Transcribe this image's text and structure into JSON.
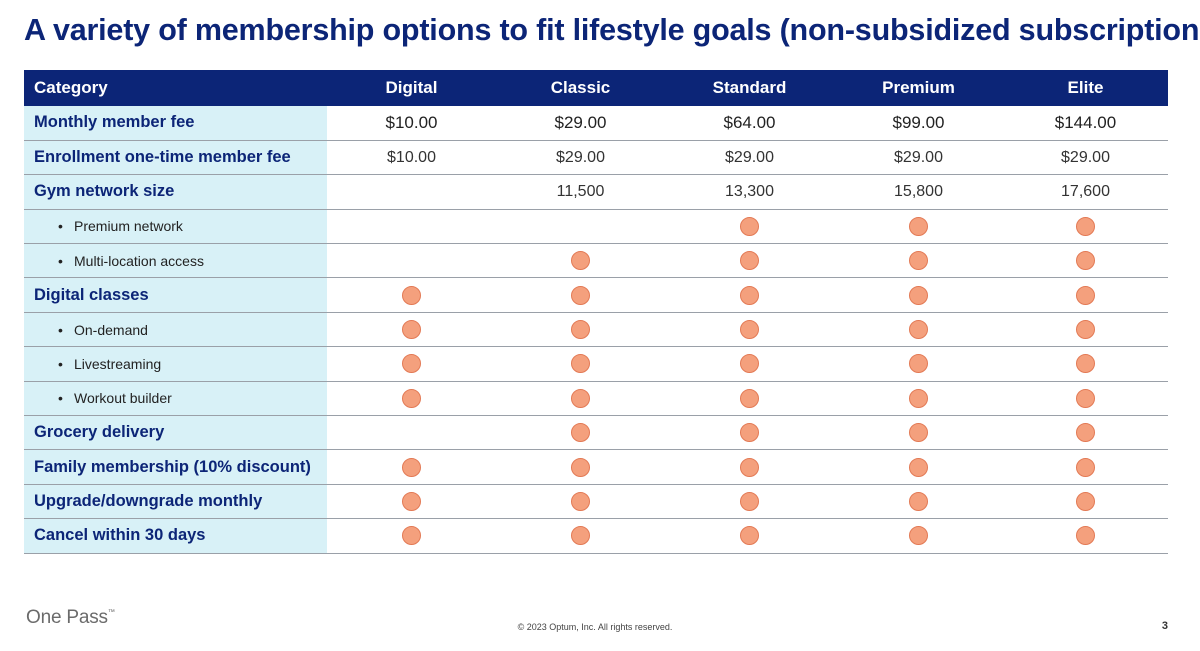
{
  "title": "A variety of membership options to fit lifestyle goals (non-subsidized subscriptions)",
  "colors": {
    "header_bg": "#0c2577",
    "label_bg": "#d8f1f7",
    "dot": "#f4a07d"
  },
  "table": {
    "headers": [
      "Category",
      "Digital",
      "Classic",
      "Standard",
      "Premium",
      "Elite"
    ],
    "rows": [
      {
        "label": "Monthly member fee",
        "sub": false,
        "fee": true,
        "cells": [
          "$10.00",
          "$29.00",
          "$64.00",
          "$99.00",
          "$144.00"
        ]
      },
      {
        "label": "Enrollment one-time member fee",
        "sub": false,
        "cells": [
          "$10.00",
          "$29.00",
          "$29.00",
          "$29.00",
          "$29.00"
        ]
      },
      {
        "label": "Gym network size",
        "sub": false,
        "cells": [
          "",
          "11,500",
          "13,300",
          "15,800",
          "17,600"
        ]
      },
      {
        "label": "Premium network",
        "sub": true,
        "cells": [
          "",
          "",
          "dot",
          "dot",
          "dot"
        ]
      },
      {
        "label": "Multi-location access",
        "sub": true,
        "cells": [
          "",
          "dot",
          "dot",
          "dot",
          "dot"
        ]
      },
      {
        "label": "Digital classes",
        "sub": false,
        "cells": [
          "dot",
          "dot",
          "dot",
          "dot",
          "dot"
        ]
      },
      {
        "label": "On-demand",
        "sub": true,
        "cells": [
          "dot",
          "dot",
          "dot",
          "dot",
          "dot"
        ]
      },
      {
        "label": "Livestreaming",
        "sub": true,
        "cells": [
          "dot",
          "dot",
          "dot",
          "dot",
          "dot"
        ]
      },
      {
        "label": "Workout builder",
        "sub": true,
        "cells": [
          "dot",
          "dot",
          "dot",
          "dot",
          "dot"
        ]
      },
      {
        "label": "Grocery delivery",
        "sub": false,
        "cells": [
          "",
          "dot",
          "dot",
          "dot",
          "dot"
        ]
      },
      {
        "label": "Family membership (10% discount)",
        "sub": false,
        "cells": [
          "dot",
          "dot",
          "dot",
          "dot",
          "dot"
        ]
      },
      {
        "label": "Upgrade/downgrade monthly",
        "sub": false,
        "cells": [
          "dot",
          "dot",
          "dot",
          "dot",
          "dot"
        ]
      },
      {
        "label": "Cancel within 30 days",
        "sub": false,
        "cells": [
          "dot",
          "dot",
          "dot",
          "dot",
          "dot"
        ]
      }
    ]
  },
  "logo": {
    "text": "One Pass",
    "mark": "™"
  },
  "footer": "© 2023 Optum, Inc. All rights reserved.",
  "page_number": "3"
}
